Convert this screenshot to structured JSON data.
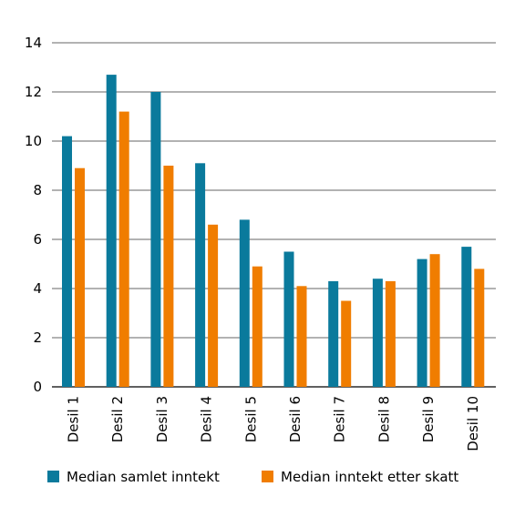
{
  "chart_data": {
    "type": "bar",
    "categories": [
      "Desil 1",
      "Desil 2",
      "Desil 3",
      "Desil 4",
      "Desil 5",
      "Desil 6",
      "Desil 7",
      "Desil 8",
      "Desil 9",
      "Desil 10"
    ],
    "series": [
      {
        "name": "Median samlet inntekt",
        "color": "#0a7a9c",
        "values": [
          10.2,
          12.7,
          12.0,
          9.1,
          6.8,
          5.5,
          4.3,
          4.4,
          5.2,
          5.7
        ]
      },
      {
        "name": "Median inntekt etter skatt",
        "color": "#f07d00",
        "values": [
          8.9,
          11.2,
          9.0,
          6.6,
          4.9,
          4.1,
          3.5,
          4.3,
          5.4,
          4.8
        ]
      }
    ],
    "yticks": [
      "0",
      "2",
      "4",
      "6",
      "8",
      "10",
      "12",
      "14"
    ],
    "ylim": [
      0,
      14
    ],
    "title": "",
    "xlabel": "",
    "ylabel": "",
    "grid": true,
    "legend_position": "bottom"
  }
}
